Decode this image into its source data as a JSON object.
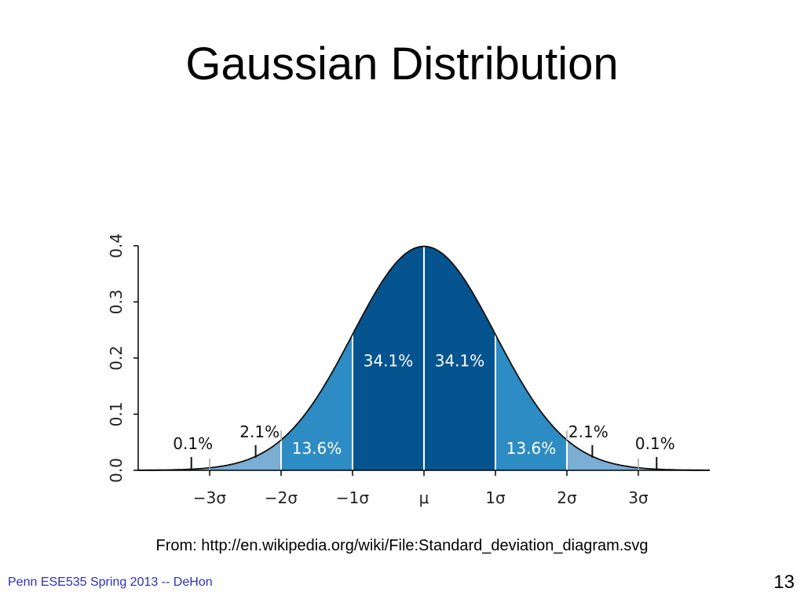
{
  "slide": {
    "title": "Gaussian Distribution",
    "source": "From: http://en.wikipedia.org/wiki/File:Standard_deviation_diagram.svg",
    "footer": "Penn ESE535 Spring 2013 -- DeHon",
    "page_number": "13"
  },
  "colors": {
    "band_1sigma": "#06548f",
    "band_2sigma": "#2d8cc3",
    "band_3sigma": "#7aaed5",
    "band_tail": "#b9d3ea",
    "curve": "#111111",
    "divider": "#ffffff"
  },
  "chart_data": {
    "type": "area",
    "distribution": "normal",
    "mean": 0,
    "sd": 1,
    "xlim": [
      -4,
      4
    ],
    "ylim": [
      0,
      0.4
    ],
    "yticks": [
      0.0,
      0.1,
      0.2,
      0.3,
      0.4
    ],
    "ytick_labels": [
      "0.0",
      "0.1",
      "0.2",
      "0.3",
      "0.4"
    ],
    "xticks": [
      -3,
      -2,
      -1,
      0,
      1,
      2,
      3
    ],
    "xtick_labels": [
      "−3σ",
      "−2σ",
      "−1σ",
      "μ",
      "1σ",
      "2σ",
      "3σ"
    ],
    "bands": [
      {
        "from": -1,
        "to": 0,
        "percent": "34.1%"
      },
      {
        "from": 0,
        "to": 1,
        "percent": "34.1%"
      },
      {
        "from": -2,
        "to": -1,
        "percent": "13.6%"
      },
      {
        "from": 1,
        "to": 2,
        "percent": "13.6%"
      },
      {
        "from": -3,
        "to": -2,
        "percent": "2.1%"
      },
      {
        "from": 2,
        "to": 3,
        "percent": "2.1%"
      },
      {
        "from": -4,
        "to": -3,
        "percent": "0.1%"
      },
      {
        "from": 3,
        "to": 4,
        "percent": "0.1%"
      }
    ],
    "grid": false,
    "legend": "none"
  }
}
